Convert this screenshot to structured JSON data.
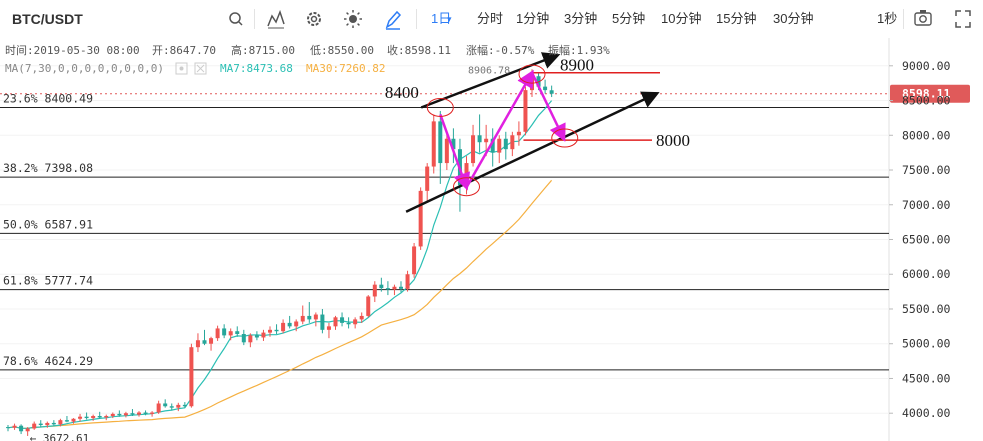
{
  "toolbar": {
    "symbol": "BTC/USDT",
    "timeframes": [
      "1日",
      "分时",
      "1分钟",
      "3分钟",
      "5分钟",
      "10分钟",
      "15分钟",
      "30分钟"
    ],
    "active_timeframe": "1日",
    "interval_label": "1秒",
    "icons": [
      "search-icon",
      "indicator-icon",
      "settings-icon",
      "theme-icon",
      "draw-pen-icon",
      "screenshot-icon",
      "fullscreen-icon"
    ]
  },
  "info": {
    "time": "时间:2019-05-30 08:00",
    "open": "开:8647.70",
    "high": "高:8715.00",
    "low": "低:8550.00",
    "close": "收:8598.11",
    "change": "涨幅:-0.57%",
    "amplitude": "振幅:1.93%"
  },
  "ma": {
    "label": "MA(7,30,0,0,0,0,0,0,0,0)",
    "ma7": "MA7:8473.68",
    "ma30": "MA30:7260.82"
  },
  "colors": {
    "up": "#ef5350",
    "down": "#26a69a",
    "ma7": "#2bbfb4",
    "ma30": "#f5b041",
    "price_line": "#e05a5a",
    "annotation_red": "#e02020",
    "annotation_magenta": "#e020e0",
    "accent": "#2e7df6"
  },
  "chart_data": {
    "type": "candlestick",
    "ylim": [
      3600,
      9400
    ],
    "y_ticks": [
      "9000.00",
      "8500.00",
      "8000.00",
      "7500.00",
      "7000.00",
      "6500.00",
      "6000.00",
      "5500.00",
      "5000.00",
      "4500.00",
      "4000.00"
    ],
    "current_price": "8598.11",
    "low_label": "← 3672.61",
    "top_partial_label": "8906.78",
    "fib_levels": [
      {
        "label": "23.6% 8400.49",
        "value": 8400.49
      },
      {
        "label": "38.2% 7398.08",
        "value": 7398.08
      },
      {
        "label": "50.0% 6587.91",
        "value": 6587.91
      },
      {
        "label": "61.8% 5777.74",
        "value": 5777.74
      },
      {
        "label": "78.6% 4624.29",
        "value": 4624.29
      }
    ],
    "annotations": {
      "label_8400": "8400",
      "label_8900": "8900",
      "label_8000": "8000",
      "level_8900": 8900,
      "level_8000": 7930
    },
    "candles": [
      [
        3800,
        3830,
        3740,
        3790
      ],
      [
        3790,
        3850,
        3760,
        3820
      ],
      [
        3820,
        3840,
        3700,
        3740
      ],
      [
        3740,
        3800,
        3672.61,
        3780
      ],
      [
        3780,
        3880,
        3760,
        3850
      ],
      [
        3850,
        3900,
        3800,
        3830
      ],
      [
        3830,
        3880,
        3790,
        3860
      ],
      [
        3860,
        3900,
        3820,
        3840
      ],
      [
        3840,
        3920,
        3810,
        3900
      ],
      [
        3900,
        3960,
        3870,
        3880
      ],
      [
        3880,
        3930,
        3850,
        3920
      ],
      [
        3920,
        3990,
        3880,
        3950
      ],
      [
        3950,
        4010,
        3910,
        3930
      ],
      [
        3930,
        3980,
        3890,
        3960
      ],
      [
        3960,
        4020,
        3920,
        3940
      ],
      [
        3940,
        3980,
        3900,
        3960
      ],
      [
        3960,
        4010,
        3930,
        3990
      ],
      [
        3990,
        4040,
        3950,
        3970
      ],
      [
        3970,
        4020,
        3940,
        4000
      ],
      [
        4000,
        4060,
        3960,
        3980
      ],
      [
        3980,
        4030,
        3950,
        4010
      ],
      [
        4010,
        4040,
        3970,
        3990
      ],
      [
        3990,
        4030,
        3950,
        4010
      ],
      [
        4010,
        4180,
        3990,
        4140
      ],
      [
        4140,
        4200,
        4080,
        4100
      ],
      [
        4100,
        4140,
        4040,
        4080
      ],
      [
        4080,
        4150,
        4030,
        4120
      ],
      [
        4120,
        4160,
        4080,
        4100
      ],
      [
        4100,
        5000,
        4080,
        4950
      ],
      [
        4950,
        5150,
        4880,
        5050
      ],
      [
        5050,
        5200,
        4980,
        5000
      ],
      [
        5000,
        5100,
        4900,
        5080
      ],
      [
        5080,
        5260,
        5040,
        5220
      ],
      [
        5220,
        5280,
        5080,
        5120
      ],
      [
        5120,
        5220,
        5050,
        5180
      ],
      [
        5180,
        5250,
        5100,
        5140
      ],
      [
        5140,
        5200,
        4980,
        5020
      ],
      [
        5020,
        5150,
        4950,
        5120
      ],
      [
        5120,
        5180,
        5050,
        5090
      ],
      [
        5090,
        5200,
        5040,
        5160
      ],
      [
        5160,
        5250,
        5100,
        5200
      ],
      [
        5200,
        5280,
        5140,
        5180
      ],
      [
        5180,
        5350,
        5150,
        5300
      ],
      [
        5300,
        5400,
        5220,
        5250
      ],
      [
        5250,
        5350,
        5180,
        5320
      ],
      [
        5320,
        5550,
        5280,
        5400
      ],
      [
        5400,
        5600,
        5300,
        5350
      ],
      [
        5350,
        5450,
        5250,
        5420
      ],
      [
        5420,
        5500,
        5150,
        5200
      ],
      [
        5200,
        5300,
        5080,
        5250
      ],
      [
        5250,
        5400,
        5200,
        5380
      ],
      [
        5380,
        5450,
        5250,
        5300
      ],
      [
        5300,
        5380,
        5220,
        5280
      ],
      [
        5280,
        5380,
        5220,
        5350
      ],
      [
        5350,
        5450,
        5300,
        5400
      ],
      [
        5400,
        5700,
        5380,
        5680
      ],
      [
        5680,
        5900,
        5600,
        5850
      ],
      [
        5850,
        5950,
        5750,
        5800
      ],
      [
        5800,
        5900,
        5700,
        5780
      ],
      [
        5780,
        5850,
        5700,
        5820
      ],
      [
        5820,
        5900,
        5740,
        5790
      ],
      [
        5790,
        6050,
        5750,
        6000
      ],
      [
        6000,
        6450,
        5950,
        6400
      ],
      [
        6400,
        7250,
        6350,
        7200
      ],
      [
        7200,
        7600,
        7050,
        7550
      ],
      [
        7550,
        8300,
        7450,
        8200
      ],
      [
        8200,
        8350,
        7300,
        7600
      ],
      [
        7600,
        8050,
        7500,
        7950
      ],
      [
        7950,
        8100,
        7600,
        7800
      ],
      [
        7800,
        7950,
        6900,
        7280
      ],
      [
        7280,
        7700,
        7150,
        7600
      ],
      [
        7600,
        8150,
        7550,
        8000
      ],
      [
        8000,
        8300,
        7750,
        7900
      ],
      [
        7900,
        8150,
        7700,
        7950
      ],
      [
        7950,
        8100,
        7550,
        7750
      ],
      [
        7750,
        8000,
        7600,
        7950
      ],
      [
        7950,
        8050,
        7650,
        7800
      ],
      [
        7800,
        8050,
        7700,
        8000
      ],
      [
        8000,
        8200,
        7850,
        8050
      ],
      [
        8050,
        8700,
        8000,
        8650
      ],
      [
        8650,
        8950,
        8550,
        8850
      ],
      [
        8850,
        8900,
        8650,
        8700
      ],
      [
        8700,
        8800,
        8600,
        8650
      ],
      [
        8647.7,
        8715,
        8550,
        8598.11
      ]
    ]
  }
}
